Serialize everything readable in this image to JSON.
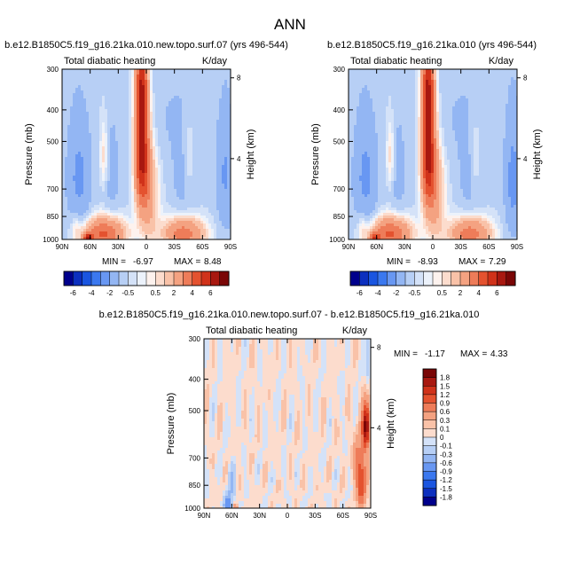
{
  "title": "ANN",
  "colors": {
    "negative": [
      "#00008c",
      "#0c2fbf",
      "#1a55e0",
      "#3b78ef",
      "#6897f2",
      "#93b6f3",
      "#b7cff5",
      "#d4e2f8",
      "#ecf2fb"
    ],
    "positive": [
      "#fdf2ee",
      "#fcdccd",
      "#f9c2a8",
      "#f4a281",
      "#ee7c59",
      "#e4522f",
      "#d0321a",
      "#a81810",
      "#7a0606"
    ]
  },
  "chart_data": [
    {
      "type": "heatmap",
      "title": "b.e12.B1850C5.f19_g16.21ka.010.new.topo.surf.07 (yrs 496-544)",
      "subtitle": "Total diabatic heating",
      "units": "K/day",
      "xlabel": "",
      "ylabel": "Pressure (mb)",
      "ylabel_right": "Height (km)",
      "x_ticks": [
        "90N",
        "60N",
        "30N",
        "0",
        "30S",
        "60S",
        "90S"
      ],
      "y_ticks": [
        300,
        400,
        500,
        700,
        850,
        1000
      ],
      "height_ticks": [
        8,
        4
      ],
      "min_label": "MIN =",
      "min": -6.97,
      "max_label": "MAX =",
      "max": 8.48,
      "colorbar_labels": [
        "-6",
        "-4",
        "-2",
        "-0.5",
        "0.5",
        "2",
        "4",
        "6"
      ]
    },
    {
      "type": "heatmap",
      "title": "b.e12.B1850C5.f19_g16.21ka.010 (yrs 496-544)",
      "subtitle": "Total diabatic heating",
      "units": "K/day",
      "xlabel": "",
      "ylabel": "Pressure (mb)",
      "ylabel_right": "Height (km)",
      "x_ticks": [
        "90N",
        "60N",
        "30N",
        "0",
        "30S",
        "60S",
        "90S"
      ],
      "y_ticks": [
        300,
        400,
        500,
        700,
        850,
        1000
      ],
      "height_ticks": [
        8,
        4
      ],
      "min_label": "MIN =",
      "min": -8.93,
      "max_label": "MAX =",
      "max": 7.29,
      "colorbar_labels": [
        "-6",
        "-4",
        "-2",
        "-0.5",
        "0.5",
        "2",
        "4",
        "6"
      ]
    },
    {
      "type": "heatmap",
      "title": "b.e12.B1850C5.f19_g16.21ka.010.new.topo.surf.07 - b.e12.B1850C5.f19_g16.21ka.010",
      "subtitle": "Total diabatic heating",
      "units": "K/day",
      "xlabel": "",
      "ylabel": "Pressure (mb)",
      "ylabel_right": "Height (km)",
      "x_ticks": [
        "90N",
        "60N",
        "30N",
        "0",
        "30S",
        "60S",
        "90S"
      ],
      "y_ticks": [
        300,
        400,
        500,
        700,
        850,
        1000
      ],
      "height_ticks": [
        8,
        4
      ],
      "min_label": "MIN =",
      "min": -1.17,
      "max_label": "MAX =",
      "max": 4.33,
      "colorbar_labels": [
        "1.8",
        "1.5",
        "1.2",
        "0.9",
        "0.6",
        "0.3",
        "0.1",
        "0",
        "-0.1",
        "-0.3",
        "-0.6",
        "-0.9",
        "-1.2",
        "-1.5",
        "-1.8"
      ]
    }
  ]
}
